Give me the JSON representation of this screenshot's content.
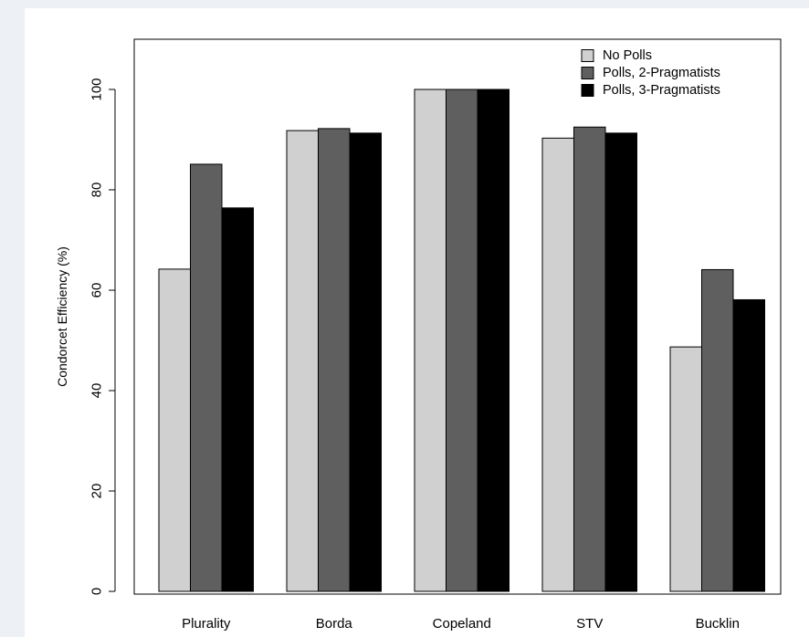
{
  "chart_data": {
    "type": "bar",
    "categories": [
      "Plurality",
      "Borda",
      "Copeland",
      "STV",
      "Bucklin"
    ],
    "series": [
      {
        "name": "No Polls",
        "color": "#d0d0d0",
        "values": [
          64.2,
          91.8,
          100,
          90.3,
          48.7
        ]
      },
      {
        "name": "Polls, 2-Pragmatists",
        "color": "#5f5f5f",
        "values": [
          85.1,
          92.2,
          100,
          92.5,
          64.1
        ]
      },
      {
        "name": "Polls, 3-Pragmatists",
        "color": "#000000",
        "values": [
          76.4,
          91.3,
          100,
          91.3,
          58.1
        ]
      }
    ],
    "ylabel": "Condorcet Efficiency (%)",
    "xlabel": "",
    "ylim": [
      0,
      110
    ],
    "yticks": [
      0,
      20,
      40,
      60,
      80,
      100
    ],
    "legend_position": "top-right",
    "grid": false
  }
}
